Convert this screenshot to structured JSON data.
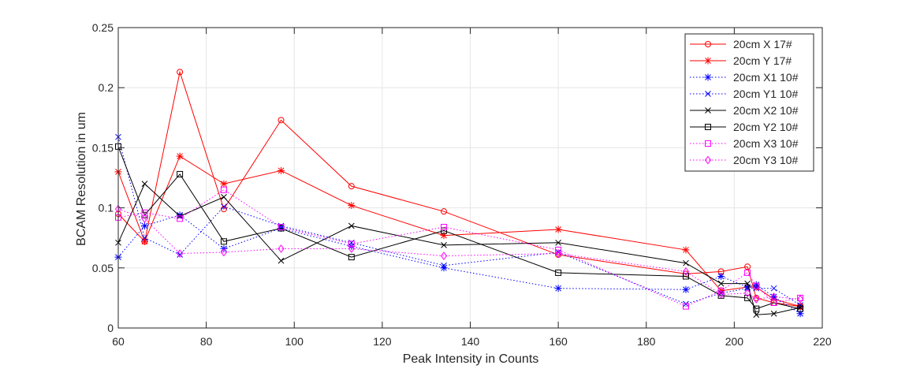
{
  "chart_data": {
    "type": "line",
    "title": "",
    "xlabel": "Peak Intensity in Counts",
    "ylabel": "BCAM Resolution in um",
    "xlim": [
      60,
      220
    ],
    "ylim": [
      0,
      0.25
    ],
    "xticks": [
      60,
      80,
      100,
      120,
      140,
      160,
      180,
      200,
      220
    ],
    "yticks": [
      0,
      0.05,
      0.1,
      0.15,
      0.2,
      0.25
    ],
    "xtick_labels": [
      "60",
      "80",
      "100",
      "120",
      "140",
      "160",
      "180",
      "200",
      "220"
    ],
    "ytick_labels": [
      "0",
      "0.05",
      "0.1",
      "0.15",
      "0.2",
      "0.25"
    ],
    "grid": true,
    "legend_position": "top-right",
    "series": [
      {
        "name": "20cm X 17#",
        "color": "#ff0000",
        "marker": "circle",
        "dash": "solid",
        "x": [
          60,
          66,
          74,
          84,
          97,
          113,
          134,
          160,
          189,
          197,
          203,
          205,
          209,
          215
        ],
        "y": [
          0.095,
          0.072,
          0.213,
          0.099,
          0.173,
          0.118,
          0.097,
          0.061,
          0.045,
          0.047,
          0.051,
          0.025,
          0.021,
          0.018
        ]
      },
      {
        "name": "20cm Y 17#",
        "color": "#ff0000",
        "marker": "asterisk",
        "dash": "solid",
        "x": [
          60,
          66,
          74,
          84,
          97,
          113,
          134,
          160,
          189,
          197,
          203,
          205,
          209,
          215
        ],
        "y": [
          0.13,
          0.072,
          0.143,
          0.12,
          0.131,
          0.102,
          0.077,
          0.082,
          0.065,
          0.031,
          0.034,
          0.034,
          0.024,
          0.018
        ]
      },
      {
        "name": "20cm X1 10#",
        "color": "#0000ff",
        "marker": "asterisk",
        "dash": "dotted",
        "x": [
          60,
          66,
          74,
          84,
          97,
          113,
          134,
          160,
          189,
          197,
          203,
          205,
          209,
          215
        ],
        "y": [
          0.059,
          0.085,
          0.094,
          0.066,
          0.083,
          0.068,
          0.05,
          0.033,
          0.032,
          0.043,
          0.034,
          0.036,
          0.026,
          0.012
        ]
      },
      {
        "name": "20cm Y1 10#",
        "color": "#0000ff",
        "marker": "cross",
        "dash": "dotted",
        "x": [
          60,
          66,
          74,
          84,
          97,
          113,
          134,
          160,
          189,
          197,
          203,
          205,
          209,
          215
        ],
        "y": [
          0.159,
          0.075,
          0.061,
          0.101,
          0.085,
          0.071,
          0.052,
          0.063,
          0.02,
          0.029,
          0.033,
          0.033,
          0.033,
          0.019
        ]
      },
      {
        "name": "20cm X2 10#",
        "color": "#000000",
        "marker": "cross",
        "dash": "solid",
        "x": [
          60,
          66,
          74,
          84,
          97,
          113,
          134,
          160,
          189,
          197,
          203,
          205,
          209,
          215
        ],
        "y": [
          0.071,
          0.12,
          0.093,
          0.109,
          0.056,
          0.085,
          0.069,
          0.071,
          0.054,
          0.037,
          0.037,
          0.011,
          0.012,
          0.017
        ]
      },
      {
        "name": "20cm Y2 10#",
        "color": "#000000",
        "marker": "square",
        "dash": "solid",
        "x": [
          60,
          66,
          74,
          84,
          97,
          113,
          134,
          160,
          189,
          197,
          203,
          205,
          209,
          215
        ],
        "y": [
          0.151,
          0.094,
          0.128,
          0.072,
          0.083,
          0.059,
          0.081,
          0.046,
          0.043,
          0.027,
          0.025,
          0.016,
          0.021,
          0.016
        ]
      },
      {
        "name": "20cm X3 10#",
        "color": "#ff00ff",
        "marker": "square",
        "dash": "dotted",
        "x": [
          60,
          66,
          74,
          84,
          97,
          113,
          134,
          160,
          189,
          197,
          203,
          205,
          209,
          215
        ],
        "y": [
          0.092,
          0.096,
          0.091,
          0.115,
          0.084,
          0.07,
          0.084,
          0.065,
          0.018,
          0.031,
          0.046,
          0.035,
          0.021,
          0.025
        ]
      },
      {
        "name": "20cm Y3 10#",
        "color": "#ff00ff",
        "marker": "diamond",
        "dash": "dotted",
        "x": [
          60,
          66,
          74,
          84,
          97,
          113,
          134,
          160,
          189,
          197,
          203,
          205,
          209,
          215
        ],
        "y": [
          0.099,
          0.091,
          0.062,
          0.063,
          0.066,
          0.066,
          0.06,
          0.062,
          0.047,
          0.028,
          0.029,
          0.024,
          0.026,
          0.024
        ]
      }
    ]
  }
}
